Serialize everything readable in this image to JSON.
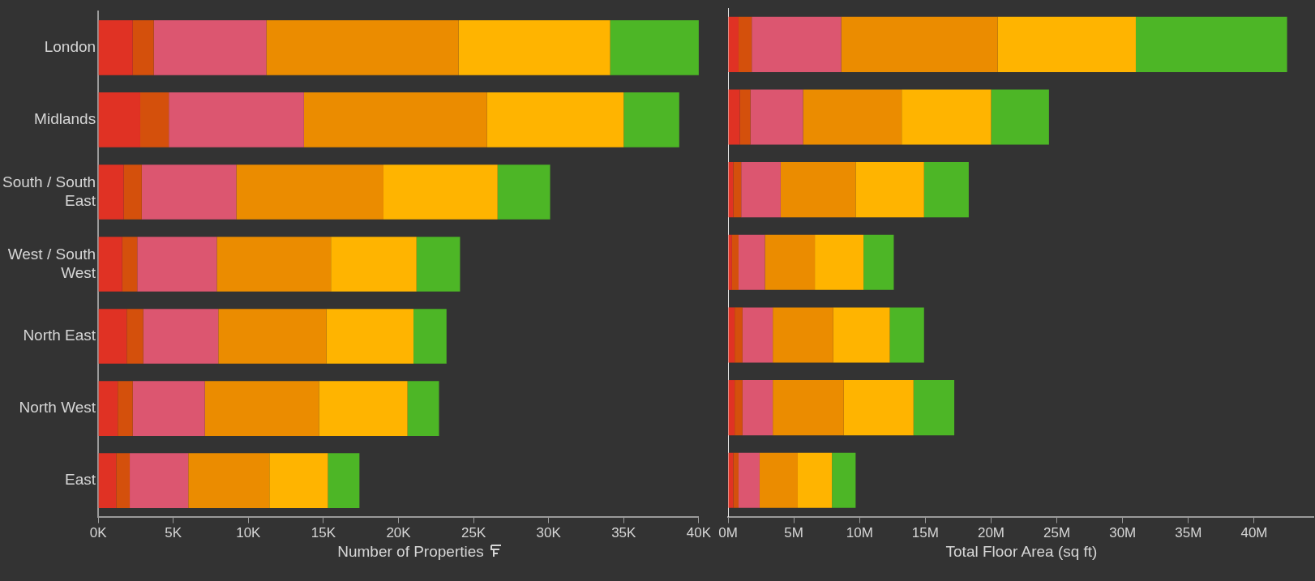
{
  "chart_data": [
    {
      "type": "bar",
      "orientation": "horizontal",
      "stacked": true,
      "xlabel": "Number of Properties",
      "categories": [
        "London",
        "Midlands",
        "South / South East",
        "West / South West",
        "North East",
        "North West",
        "East"
      ],
      "xlim": [
        0,
        40
      ],
      "xticks": [
        {
          "value": 0,
          "label": "0K"
        },
        {
          "value": 5,
          "label": "5K"
        },
        {
          "value": 10,
          "label": "10K"
        },
        {
          "value": 15,
          "label": "15K"
        },
        {
          "value": 20,
          "label": "20K"
        },
        {
          "value": 25,
          "label": "25K"
        },
        {
          "value": 30,
          "label": "30K"
        },
        {
          "value": 35,
          "label": "35K"
        },
        {
          "value": 40,
          "label": "40K"
        }
      ],
      "grid": false,
      "legend": false,
      "series": [
        {
          "color": "#e03224",
          "values": [
            2.3,
            2.8,
            1.7,
            1.6,
            1.9,
            1.3,
            1.2
          ]
        },
        {
          "color": "#d4500c",
          "values": [
            1.4,
            1.9,
            1.2,
            1.0,
            1.1,
            1.0,
            0.9
          ]
        },
        {
          "color": "#dc5670",
          "values": [
            7.5,
            9.0,
            6.3,
            5.3,
            5.0,
            4.8,
            3.9
          ]
        },
        {
          "color": "#eb8c00",
          "values": [
            12.8,
            12.2,
            9.8,
            7.6,
            7.2,
            7.6,
            5.4
          ]
        },
        {
          "color": "#ffb400",
          "values": [
            10.1,
            9.1,
            7.6,
            5.7,
            5.8,
            5.9,
            3.9
          ]
        },
        {
          "color": "#4db626",
          "values": [
            6.0,
            3.7,
            3.5,
            2.9,
            2.2,
            2.1,
            2.1
          ]
        }
      ]
    },
    {
      "type": "bar",
      "orientation": "horizontal",
      "stacked": true,
      "xlabel": "Total Floor Area (sq ft)",
      "categories": [
        null,
        null,
        null,
        null,
        null,
        null,
        null
      ],
      "tick_labels": "x",
      "xlim": [
        0,
        44.5
      ],
      "xticks": [
        {
          "value": 0,
          "label": "0M"
        },
        {
          "value": 5,
          "label": "5M"
        },
        {
          "value": 10,
          "label": "10M"
        },
        {
          "value": 15,
          "label": "15M"
        },
        {
          "value": 20,
          "label": "20M"
        },
        {
          "value": 25,
          "label": "25M"
        },
        {
          "value": 30,
          "label": "30M"
        },
        {
          "value": 35,
          "label": "35M"
        },
        {
          "value": 40,
          "label": "40M"
        }
      ],
      "grid": false,
      "legend": false,
      "series": [
        {
          "color": "#e03224",
          "values": [
            0.8,
            0.9,
            0.4,
            0.3,
            0.5,
            0.5,
            0.4
          ]
        },
        {
          "color": "#d4500c",
          "values": [
            1.0,
            0.8,
            0.6,
            0.5,
            0.6,
            0.6,
            0.4
          ]
        },
        {
          "color": "#dc5670",
          "values": [
            6.8,
            4.0,
            3.0,
            2.0,
            2.3,
            2.3,
            1.6
          ]
        },
        {
          "color": "#eb8c00",
          "values": [
            11.9,
            7.5,
            5.7,
            3.8,
            4.6,
            5.4,
            2.9
          ]
        },
        {
          "color": "#ffb400",
          "values": [
            10.5,
            6.8,
            5.2,
            3.7,
            4.3,
            5.3,
            2.6
          ]
        },
        {
          "color": "#4db626",
          "values": [
            11.5,
            4.4,
            3.4,
            2.3,
            2.6,
            3.1,
            1.8
          ]
        }
      ]
    }
  ]
}
